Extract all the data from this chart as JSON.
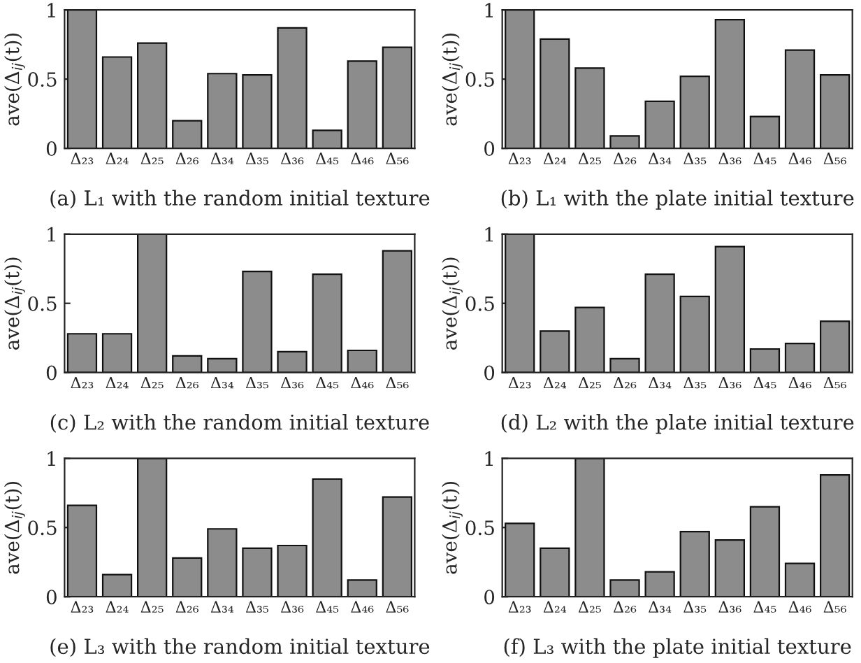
{
  "chart_data": [
    {
      "type": "bar",
      "title": "(a) L₁ with the random initial texture",
      "ylabel": "ave(Δ$_{ij}$(t))",
      "categories": [
        "Δ₂₃",
        "Δ₂₄",
        "Δ₂₅",
        "Δ₂₆",
        "Δ₃₄",
        "Δ₃₅",
        "Δ₃₆",
        "Δ₄₅",
        "Δ₄₆",
        "Δ₅₆"
      ],
      "values": [
        1.0,
        0.66,
        0.76,
        0.2,
        0.54,
        0.53,
        0.87,
        0.13,
        0.63,
        0.73
      ],
      "color": "#8c8c8c",
      "ylim": [
        0,
        1
      ],
      "yticks": [
        0,
        0.5,
        1
      ]
    },
    {
      "type": "bar",
      "title": "(b) L₁ with the plate initial texture",
      "ylabel": "ave(Δ$_{ij}$(t))",
      "categories": [
        "Δ₂₃",
        "Δ₂₄",
        "Δ₂₅",
        "Δ₂₆",
        "Δ₃₄",
        "Δ₃₅",
        "Δ₃₆",
        "Δ₄₅",
        "Δ₄₆",
        "Δ₅₆"
      ],
      "values": [
        1.0,
        0.79,
        0.58,
        0.09,
        0.34,
        0.52,
        0.93,
        0.23,
        0.71,
        0.53
      ],
      "color": "#8c8c8c",
      "ylim": [
        0,
        1
      ],
      "yticks": [
        0,
        0.5,
        1
      ]
    },
    {
      "type": "bar",
      "title": "(c) L₂ with the random initial texture",
      "ylabel": "ave(Δ$_{ij}$(t))",
      "categories": [
        "Δ₂₃",
        "Δ₂₄",
        "Δ₂₅",
        "Δ₂₆",
        "Δ₃₄",
        "Δ₃₅",
        "Δ₃₆",
        "Δ₄₅",
        "Δ₄₆",
        "Δ₅₆"
      ],
      "values": [
        0.28,
        0.28,
        1.0,
        0.12,
        0.1,
        0.73,
        0.15,
        0.71,
        0.16,
        0.88
      ],
      "color": "#8c8c8c",
      "ylim": [
        0,
        1
      ],
      "yticks": [
        0,
        0.5,
        1
      ]
    },
    {
      "type": "bar",
      "title": "(d) L₂ with the plate initial texture",
      "ylabel": "ave(Δ$_{ij}$(t))",
      "categories": [
        "Δ₂₃",
        "Δ₂₄",
        "Δ₂₅",
        "Δ₂₆",
        "Δ₃₄",
        "Δ₃₅",
        "Δ₃₆",
        "Δ₄₅",
        "Δ₄₆",
        "Δ₅₆"
      ],
      "values": [
        1.0,
        0.3,
        0.47,
        0.1,
        0.71,
        0.55,
        0.91,
        0.17,
        0.21,
        0.37
      ],
      "color": "#8c8c8c",
      "ylim": [
        0,
        1
      ],
      "yticks": [
        0,
        0.5,
        1
      ]
    },
    {
      "type": "bar",
      "title": "(e) L₃ with the random initial texture",
      "ylabel": "ave(Δ$_{ij}$(t))",
      "categories": [
        "Δ₂₃",
        "Δ₂₄",
        "Δ₂₅",
        "Δ₂₆",
        "Δ₃₄",
        "Δ₃₅",
        "Δ₃₆",
        "Δ₄₅",
        "Δ₄₆",
        "Δ₅₆"
      ],
      "values": [
        0.66,
        0.16,
        1.0,
        0.28,
        0.49,
        0.35,
        0.37,
        0.85,
        0.12,
        0.72
      ],
      "color": "#8c8c8c",
      "ylim": [
        0,
        1
      ],
      "yticks": [
        0,
        0.5,
        1
      ]
    },
    {
      "type": "bar",
      "title": "(f) L₃ with the plate initial texture",
      "ylabel": "ave(Δ$_{ij}$(t))",
      "categories": [
        "Δ₂₃",
        "Δ₂₄",
        "Δ₂₅",
        "Δ₂₆",
        "Δ₃₄",
        "Δ₃₅",
        "Δ₃₆",
        "Δ₄₅",
        "Δ₄₆",
        "Δ₅₆"
      ],
      "values": [
        0.53,
        0.35,
        1.0,
        0.12,
        0.18,
        0.47,
        0.41,
        0.65,
        0.24,
        0.88
      ],
      "color": "#8c8c8c",
      "ylim": [
        0,
        1
      ],
      "yticks": [
        0,
        0.5,
        1
      ]
    }
  ]
}
